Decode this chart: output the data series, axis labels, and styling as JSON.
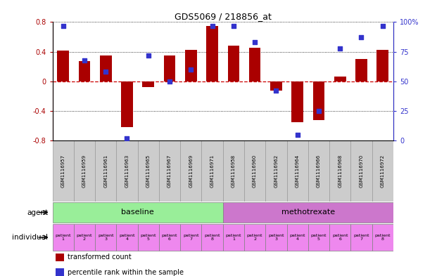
{
  "title": "GDS5069 / 218856_at",
  "samples": [
    "GSM1116957",
    "GSM1116959",
    "GSM1116961",
    "GSM1116963",
    "GSM1116965",
    "GSM1116967",
    "GSM1116969",
    "GSM1116971",
    "GSM1116958",
    "GSM1116960",
    "GSM1116962",
    "GSM1116964",
    "GSM1116966",
    "GSM1116968",
    "GSM1116970",
    "GSM1116972"
  ],
  "bar_values": [
    0.42,
    0.27,
    0.35,
    -0.62,
    -0.08,
    0.35,
    0.43,
    0.75,
    0.48,
    0.45,
    -0.12,
    -0.55,
    -0.52,
    0.07,
    0.3,
    0.43
  ],
  "dot_values": [
    97,
    68,
    58,
    2,
    72,
    50,
    60,
    97,
    97,
    83,
    42,
    5,
    25,
    78,
    87,
    97
  ],
  "ylim_left": [
    -0.8,
    0.8
  ],
  "ylim_right": [
    0,
    100
  ],
  "yticks_left": [
    -0.8,
    -0.4,
    0.0,
    0.4,
    0.8
  ],
  "yticks_right": [
    0,
    25,
    50,
    75,
    100
  ],
  "bar_color": "#AA0000",
  "dot_color": "#3333CC",
  "zero_line_color": "#CC0000",
  "agent_groups": [
    {
      "label": "baseline",
      "start": 0,
      "end": 8,
      "color": "#99EE99"
    },
    {
      "label": "methotrexate",
      "start": 8,
      "end": 16,
      "color": "#CC77CC"
    }
  ],
  "indiv_color": "#EE88EE",
  "individual_labels": [
    "patient\n1",
    "patient\n2",
    "patient\n3",
    "patient\n4",
    "patient\n5",
    "patient\n6",
    "patient\n7",
    "patient\n8",
    "patient\n1",
    "patient\n2",
    "patient\n3",
    "patient\n4",
    "patient\n5",
    "patient\n6",
    "patient\n7",
    "patient\n8"
  ],
  "legend_items": [
    {
      "label": "transformed count",
      "color": "#AA0000"
    },
    {
      "label": "percentile rank within the sample",
      "color": "#3333CC"
    }
  ],
  "bg_color": "#FFFFFF",
  "sample_box_color": "#CCCCCC",
  "sample_box_edge": "#999999"
}
